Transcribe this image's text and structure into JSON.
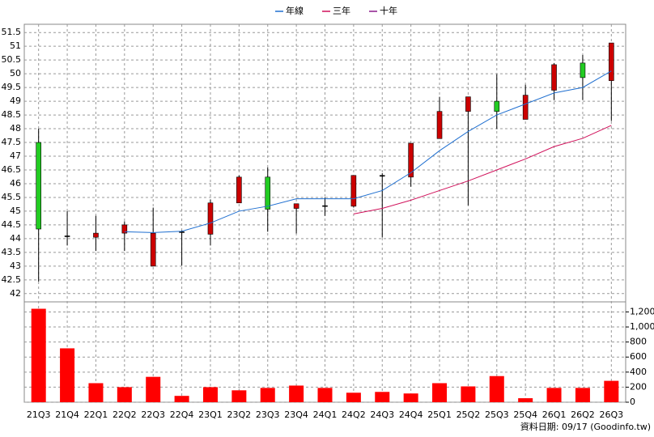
{
  "chart_data": {
    "type": "candlestick",
    "categories": [
      "21Q3",
      "21Q4",
      "22Q1",
      "22Q2",
      "22Q3",
      "22Q4",
      "23Q1",
      "23Q2",
      "23Q3",
      "23Q4",
      "24Q1",
      "24Q2",
      "24Q3",
      "24Q4",
      "25Q1",
      "25Q2",
      "25Q3",
      "25Q4",
      "26Q1",
      "26Q2",
      "26Q3"
    ],
    "open": [
      47.5,
      44.1,
      44.05,
      44.2,
      43.0,
      44.25,
      44.16,
      45.3,
      46.24,
      45.1,
      45.2,
      45.18,
      46.28,
      46.24,
      47.64,
      48.63,
      49.0,
      48.34,
      49.4,
      50.39,
      49.75
    ],
    "high": [
      48.0,
      45.0,
      44.83,
      44.63,
      45.13,
      44.3,
      45.42,
      46.3,
      46.59,
      45.27,
      45.5,
      46.3,
      46.38,
      47.47,
      49.16,
      49.16,
      49.98,
      49.6,
      50.39,
      50.68,
      51.12
    ],
    "low": [
      42.44,
      43.75,
      43.55,
      43.55,
      42.99,
      43.02,
      43.75,
      45.3,
      44.25,
      44.19,
      44.83,
      45.13,
      44.04,
      45.89,
      47.64,
      45.21,
      47.99,
      48.34,
      49.04,
      49.04,
      48.28
    ],
    "close": [
      44.35,
      44.1,
      44.2,
      44.5,
      44.2,
      44.25,
      45.3,
      46.24,
      45.07,
      45.27,
      45.2,
      46.3,
      46.3,
      47.47,
      48.63,
      49.16,
      48.63,
      49.22,
      50.33,
      49.86,
      51.12
    ],
    "up_color": "#cc0000",
    "down_color": "#22cc22",
    "ylim": [
      41.7,
      51.8
    ],
    "yticks": [
      42,
      42.5,
      43,
      43.5,
      44,
      44.5,
      45,
      45.5,
      46,
      46.5,
      47,
      47.5,
      48,
      48.5,
      49,
      49.5,
      50,
      50.5,
      51,
      51.5
    ],
    "grid": true,
    "series": [
      {
        "name": "年線",
        "color": "#1f6fd0",
        "values": [
          null,
          null,
          null,
          44.25,
          44.22,
          44.27,
          44.57,
          45.0,
          45.18,
          45.45,
          45.45,
          45.45,
          45.75,
          46.4,
          47.2,
          47.9,
          48.5,
          48.9,
          49.3,
          49.5,
          50.1
        ]
      },
      {
        "name": "三年",
        "color": "#d0105a",
        "values": [
          null,
          null,
          null,
          null,
          null,
          null,
          null,
          null,
          null,
          null,
          null,
          44.9,
          45.1,
          45.4,
          45.75,
          46.1,
          46.5,
          46.9,
          47.35,
          47.65,
          48.12
        ]
      },
      {
        "name": "十年",
        "color": "#8b1a8b",
        "values": [
          null,
          null,
          null,
          null,
          null,
          null,
          null,
          null,
          null,
          null,
          null,
          null,
          null,
          null,
          null,
          null,
          null,
          null,
          null,
          null,
          null
        ]
      }
    ],
    "volume": {
      "color": "#ff0000",
      "values": [
        1242,
        716,
        253,
        200,
        337,
        84,
        200,
        158,
        190,
        221,
        190,
        126,
        137,
        116,
        253,
        210,
        347,
        53,
        190,
        190,
        284
      ],
      "ylim": [
        0,
        1280
      ],
      "yticks": [
        0,
        200,
        400,
        600,
        800,
        {
          "value": 1000,
          "label": "1,000"
        },
        {
          "value": 1200,
          "label": "1,200"
        }
      ]
    },
    "footnote": "資料日期: 09/17 (Goodinfo.tw)"
  }
}
